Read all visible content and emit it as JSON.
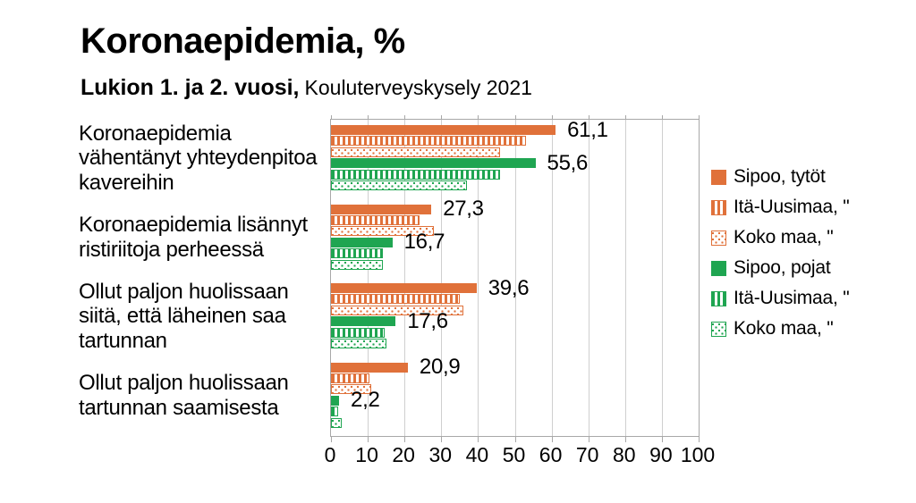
{
  "header": {
    "title": "Koronaepidemia, %",
    "subtitle_bold": "Lukion 1. ja 2. vuosi,",
    "subtitle_regular": "Kouluterveyskysely 2021"
  },
  "colors": {
    "orange": "#E0713A",
    "green": "#1FA551",
    "gridline": "#CFCFCF",
    "axis_border": "#A8A8A8",
    "text": "#000000"
  },
  "chart_data": {
    "type": "bar",
    "orientation": "horizontal",
    "title": "Koronaepidemia, %",
    "subtitle": "Lukion 1. ja 2. vuosi, Kouluterveyskysely 2021",
    "xlabel": "",
    "ylabel": "",
    "xlim": [
      0,
      100
    ],
    "x_ticks": [
      0,
      10,
      20,
      30,
      40,
      50,
      60,
      70,
      80,
      90,
      100
    ],
    "grid": true,
    "legend_position": "right",
    "categories": [
      "Koronaepidemia vähentänyt yhteydenpitoa kavereihin",
      "Koronaepidemia lisännyt ristiriitoja perheessä",
      "Ollut paljon huolissaan siitä, että läheinen saa tartunnan",
      "Ollut paljon huolissaan tartunnan saamisesta"
    ],
    "series": [
      {
        "name": "Sipoo, tytöt",
        "color_key": "orange",
        "pattern": "solid",
        "values": [
          61.1,
          27.3,
          39.6,
          20.9
        ],
        "data_labels": [
          "61,1",
          "27,3",
          "39,6",
          "20,9"
        ]
      },
      {
        "name": "Itä-Uusimaa, \"",
        "color_key": "orange",
        "pattern": "striped",
        "values": [
          53,
          24,
          35,
          10.5
        ],
        "data_labels": null
      },
      {
        "name": "Koko maa, \"",
        "color_key": "orange",
        "pattern": "dotted",
        "values": [
          46,
          28,
          36,
          11
        ],
        "data_labels": null
      },
      {
        "name": "Sipoo, pojat",
        "color_key": "green",
        "pattern": "solid",
        "values": [
          55.6,
          16.7,
          17.6,
          2.2
        ],
        "data_labels": [
          "55,6",
          "16,7",
          "17,6",
          "2,2"
        ]
      },
      {
        "name": "Itä-Uusimaa, \"",
        "color_key": "green",
        "pattern": "striped",
        "values": [
          46,
          14,
          14.5,
          2
        ],
        "data_labels": null
      },
      {
        "name": "Koko maa, \"",
        "color_key": "green",
        "pattern": "dotted",
        "values": [
          37,
          14,
          15,
          3
        ],
        "data_labels": null
      }
    ]
  }
}
